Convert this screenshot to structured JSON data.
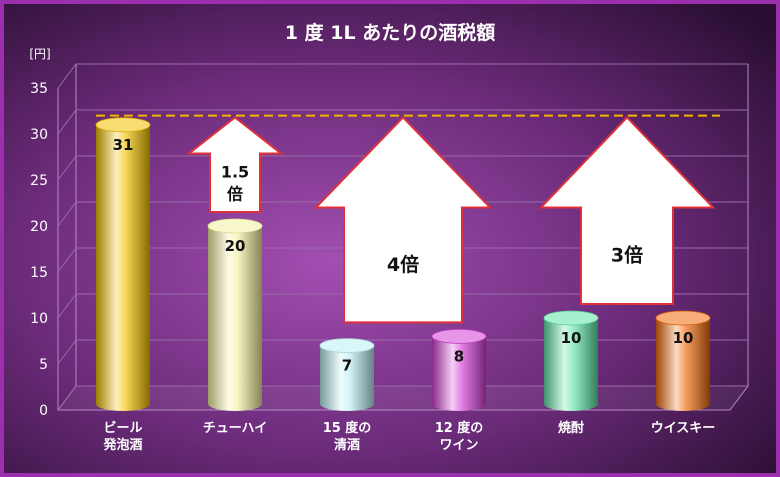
{
  "chart_data": {
    "type": "bar",
    "title": "1 度 1L あたりの酒税額",
    "ylabel": "[円]",
    "ylim": [
      0,
      35
    ],
    "yticks": [
      0,
      5,
      10,
      15,
      20,
      25,
      30,
      35
    ],
    "categories": [
      {
        "lines": [
          "ビール",
          "発泡酒"
        ]
      },
      {
        "lines": [
          "チューハイ"
        ]
      },
      {
        "lines": [
          "15 度の",
          "清酒"
        ]
      },
      {
        "lines": [
          "12 度の",
          "ワイン"
        ]
      },
      {
        "lines": [
          "焼酎"
        ]
      },
      {
        "lines": [
          "ウイスキー"
        ]
      }
    ],
    "values": [
      31,
      20,
      7,
      8,
      10,
      10
    ],
    "colors": [
      "#f2c200",
      "#f3f0a0",
      "#b9eef2",
      "#d23ed6",
      "#5fe3a6",
      "#f06a0a"
    ],
    "reference_line": {
      "value": 32,
      "color": "#f5b400",
      "style": "dashed"
    },
    "annotations": [
      {
        "text": "1.5\n倍",
        "from": 20,
        "to": 31
      },
      {
        "text": "4倍",
        "from": 8,
        "to": 31
      },
      {
        "text": "3倍",
        "from": 10,
        "to": 31
      }
    ]
  }
}
